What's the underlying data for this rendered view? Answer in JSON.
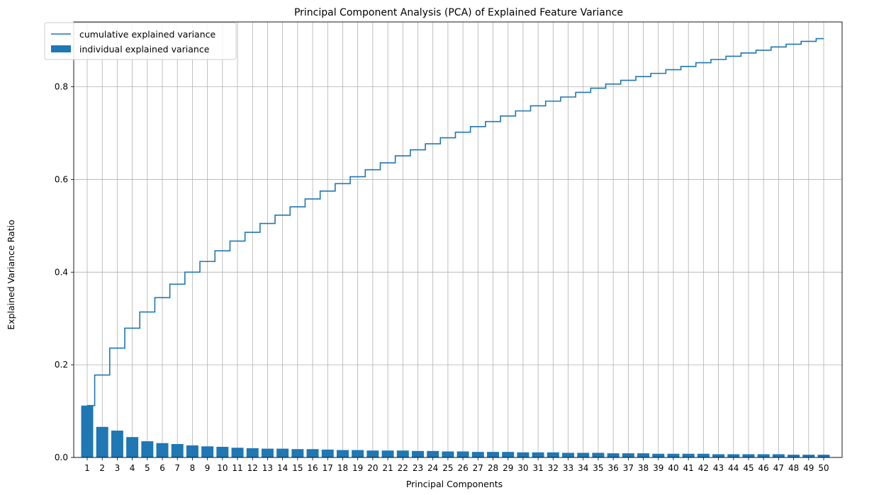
{
  "chart_data": {
    "type": "bar",
    "title": "Principal Component Analysis (PCA) of Explained Feature Variance",
    "xlabel": "Principal Components",
    "ylabel": "Explained Variance Ratio",
    "ylim": [
      0,
      0.94
    ],
    "yticks": [
      "0.0",
      "0.2",
      "0.4",
      "0.6",
      "0.8"
    ],
    "grid": true,
    "legend_position": "top-left",
    "categories": [
      "1",
      "2",
      "3",
      "4",
      "5",
      "6",
      "7",
      "8",
      "9",
      "10",
      "11",
      "12",
      "13",
      "14",
      "15",
      "16",
      "17",
      "18",
      "19",
      "20",
      "21",
      "22",
      "23",
      "24",
      "25",
      "26",
      "27",
      "28",
      "29",
      "30",
      "31",
      "32",
      "33",
      "34",
      "35",
      "36",
      "37",
      "38",
      "39",
      "40",
      "41",
      "42",
      "43",
      "44",
      "45",
      "46",
      "47",
      "48",
      "49",
      "50"
    ],
    "series": [
      {
        "name": "individual explained variance",
        "kind": "bar",
        "color": "#1f77b4",
        "values": [
          0.112,
          0.066,
          0.058,
          0.044,
          0.035,
          0.031,
          0.029,
          0.026,
          0.024,
          0.023,
          0.021,
          0.02,
          0.019,
          0.019,
          0.018,
          0.018,
          0.017,
          0.016,
          0.016,
          0.015,
          0.015,
          0.015,
          0.014,
          0.014,
          0.013,
          0.013,
          0.012,
          0.012,
          0.012,
          0.011,
          0.011,
          0.011,
          0.01,
          0.01,
          0.01,
          0.009,
          0.009,
          0.009,
          0.008,
          0.008,
          0.008,
          0.008,
          0.007,
          0.007,
          0.007,
          0.007,
          0.007,
          0.006,
          0.006,
          0.006
        ]
      },
      {
        "name": "cumulative explained variance",
        "kind": "step",
        "color": "#1f77b4",
        "values": [
          0.112,
          0.178,
          0.236,
          0.279,
          0.314,
          0.345,
          0.374,
          0.4,
          0.423,
          0.446,
          0.467,
          0.486,
          0.505,
          0.523,
          0.541,
          0.558,
          0.575,
          0.591,
          0.606,
          0.621,
          0.636,
          0.651,
          0.664,
          0.677,
          0.69,
          0.702,
          0.714,
          0.725,
          0.737,
          0.748,
          0.759,
          0.769,
          0.778,
          0.788,
          0.797,
          0.806,
          0.814,
          0.822,
          0.829,
          0.837,
          0.844,
          0.852,
          0.859,
          0.866,
          0.873,
          0.879,
          0.886,
          0.892,
          0.898,
          0.904
        ]
      }
    ]
  }
}
